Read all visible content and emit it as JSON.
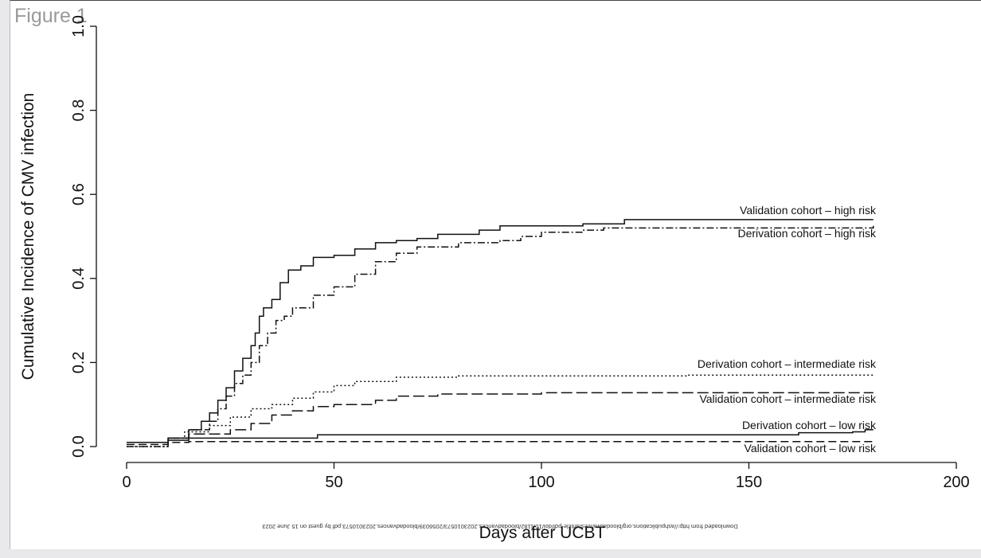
{
  "page": {
    "figure_label": "Figure 1",
    "watermark": "Downloaded from http://ashpublications.org/bloodadvances/article-pdf/doi/10.1182/bloodadvances.2023010573/2056039/bloodadvances.2023010573.pdf by guest on 15 June 2023"
  },
  "chart_data": {
    "type": "line",
    "step": true,
    "xlabel": "Days after UCBT",
    "ylabel": "Cumulative Incidence of CMV infection",
    "xlim": [
      0,
      200
    ],
    "ylim": [
      0,
      1.0
    ],
    "x_ticks": [
      "0",
      "50",
      "100",
      "150",
      "200"
    ],
    "y_ticks": [
      "0.0",
      "0.2",
      "0.4",
      "0.6",
      "0.8",
      "1.0"
    ],
    "grid": false,
    "legend": "none (curves labeled directly at right end)",
    "series": [
      {
        "name": "Validation cohort – high risk",
        "style": "solid",
        "points": [
          [
            0,
            0.01
          ],
          [
            10,
            0.02
          ],
          [
            15,
            0.04
          ],
          [
            18,
            0.06
          ],
          [
            20,
            0.08
          ],
          [
            22,
            0.11
          ],
          [
            24,
            0.14
          ],
          [
            26,
            0.18
          ],
          [
            28,
            0.21
          ],
          [
            30,
            0.24
          ],
          [
            31,
            0.27
          ],
          [
            32,
            0.31
          ],
          [
            33,
            0.33
          ],
          [
            35,
            0.35
          ],
          [
            37,
            0.39
          ],
          [
            39,
            0.42
          ],
          [
            42,
            0.43
          ],
          [
            45,
            0.45
          ],
          [
            50,
            0.455
          ],
          [
            55,
            0.47
          ],
          [
            60,
            0.485
          ],
          [
            65,
            0.49
          ],
          [
            70,
            0.495
          ],
          [
            75,
            0.505
          ],
          [
            85,
            0.515
          ],
          [
            90,
            0.525
          ],
          [
            110,
            0.53
          ],
          [
            120,
            0.54
          ],
          [
            180,
            0.54
          ]
        ]
      },
      {
        "name": "Derivation cohort – high risk",
        "style": "dashdot",
        "points": [
          [
            0,
            0.0
          ],
          [
            10,
            0.02
          ],
          [
            15,
            0.04
          ],
          [
            20,
            0.06
          ],
          [
            22,
            0.09
          ],
          [
            24,
            0.12
          ],
          [
            26,
            0.15
          ],
          [
            28,
            0.17
          ],
          [
            30,
            0.2
          ],
          [
            32,
            0.24
          ],
          [
            34,
            0.27
          ],
          [
            36,
            0.3
          ],
          [
            38,
            0.31
          ],
          [
            40,
            0.33
          ],
          [
            45,
            0.36
          ],
          [
            50,
            0.38
          ],
          [
            55,
            0.41
          ],
          [
            60,
            0.44
          ],
          [
            65,
            0.46
          ],
          [
            70,
            0.475
          ],
          [
            80,
            0.485
          ],
          [
            90,
            0.49
          ],
          [
            95,
            0.5
          ],
          [
            100,
            0.51
          ],
          [
            110,
            0.515
          ],
          [
            115,
            0.52
          ],
          [
            180,
            0.525
          ]
        ]
      },
      {
        "name": "Derivation cohort – intermediate risk",
        "style": "dotted",
        "points": [
          [
            0,
            0.0
          ],
          [
            10,
            0.02
          ],
          [
            14,
            0.035
          ],
          [
            20,
            0.05
          ],
          [
            25,
            0.07
          ],
          [
            30,
            0.09
          ],
          [
            35,
            0.1
          ],
          [
            40,
            0.115
          ],
          [
            45,
            0.13
          ],
          [
            50,
            0.145
          ],
          [
            55,
            0.155
          ],
          [
            65,
            0.165
          ],
          [
            80,
            0.168
          ],
          [
            135,
            0.17
          ],
          [
            180,
            0.172
          ]
        ]
      },
      {
        "name": "Validation cohort – intermediate risk",
        "style": "longdash",
        "points": [
          [
            0,
            0.01
          ],
          [
            10,
            0.02
          ],
          [
            15,
            0.03
          ],
          [
            25,
            0.04
          ],
          [
            30,
            0.055
          ],
          [
            35,
            0.075
          ],
          [
            40,
            0.085
          ],
          [
            45,
            0.095
          ],
          [
            50,
            0.1
          ],
          [
            60,
            0.11
          ],
          [
            65,
            0.12
          ],
          [
            75,
            0.125
          ],
          [
            100,
            0.128
          ],
          [
            180,
            0.128
          ]
        ]
      },
      {
        "name": "Derivation cohort – low risk",
        "style": "solid",
        "points": [
          [
            0,
            0.01
          ],
          [
            10,
            0.015
          ],
          [
            15,
            0.02
          ],
          [
            46,
            0.028
          ],
          [
            100,
            0.028
          ],
          [
            160,
            0.028
          ],
          [
            162,
            0.033
          ],
          [
            175,
            0.035
          ],
          [
            178,
            0.04
          ],
          [
            180,
            0.04
          ]
        ]
      },
      {
        "name": "Validation cohort – low risk",
        "style": "dashed",
        "points": [
          [
            0,
            0.005
          ],
          [
            10,
            0.01
          ],
          [
            15,
            0.012
          ],
          [
            180,
            0.012
          ]
        ]
      }
    ]
  }
}
